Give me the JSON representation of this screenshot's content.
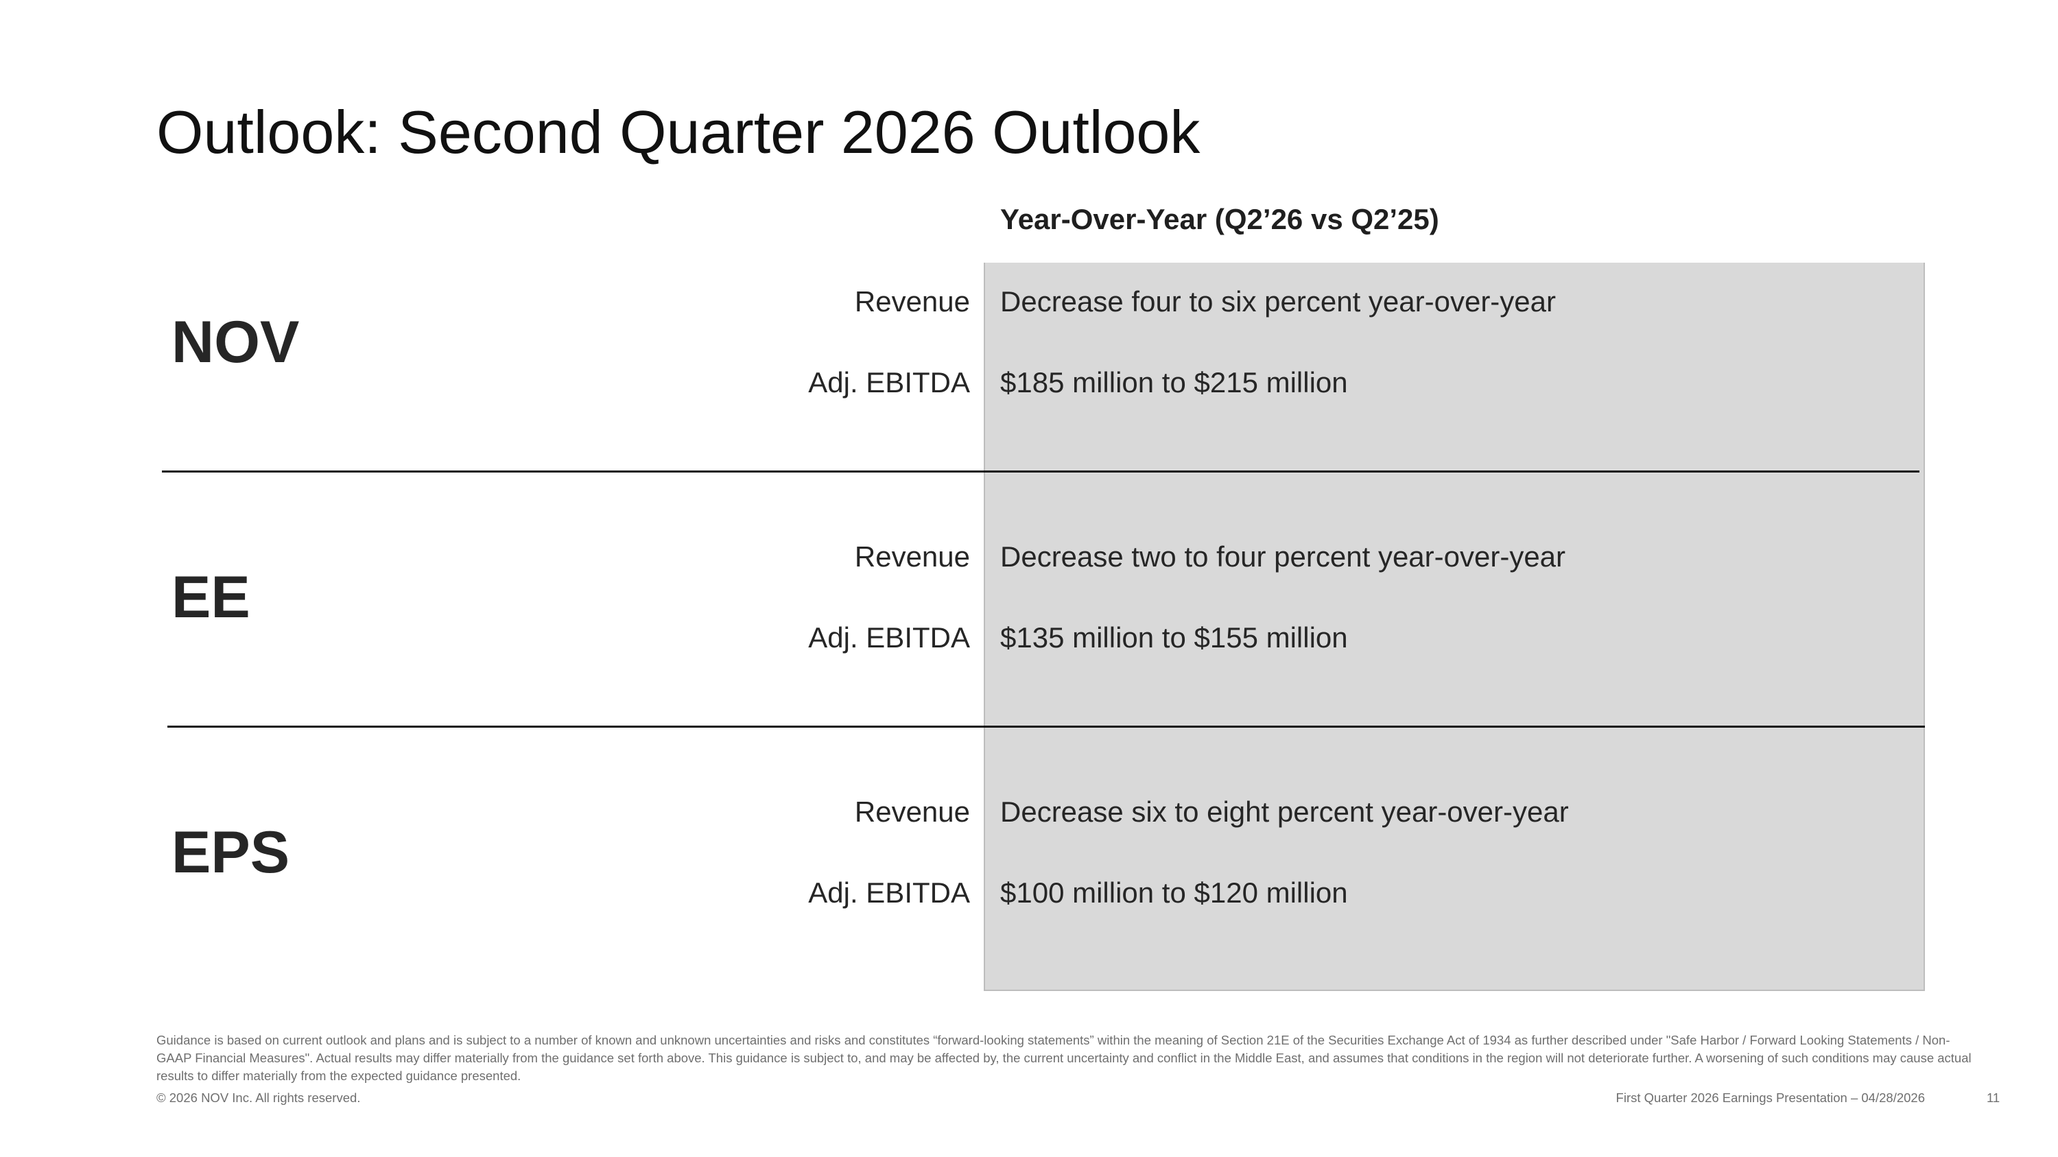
{
  "title": "Outlook: Second Quarter 2026 Outlook",
  "column_header": "Year-Over-Year (Q2’26 vs Q2’25)",
  "segments": [
    {
      "name": "NOV",
      "rows": [
        {
          "label": "Revenue",
          "value": "Decrease four to six percent year-over-year"
        },
        {
          "label": "Adj. EBITDA",
          "value": "$185 million to $215 million"
        }
      ]
    },
    {
      "name": "EE",
      "rows": [
        {
          "label": "Revenue",
          "value": "Decrease two to four percent year-over-year"
        },
        {
          "label": "Adj. EBITDA",
          "value": "$135 million to $155 million"
        }
      ]
    },
    {
      "name": "EPS",
      "rows": [
        {
          "label": "Revenue",
          "value": "Decrease six to eight percent year-over-year"
        },
        {
          "label": "Adj. EBITDA",
          "value": "$100 million to $120 million"
        }
      ]
    }
  ],
  "footer": {
    "disclaimer": "Guidance is based on current outlook and plans and is subject to a number of known and unknown uncertainties and risks and constitutes “forward-looking statements” within the meaning of Section 21E of the Securities Exchange Act of 1934 as further described under \"Safe Harbor / Forward Looking Statements / Non-GAAP Financial Measures\". Actual results may differ materially from the guidance set forth above. This guidance is subject to, and may be affected by, the current uncertainty and conflict in the Middle East, and assumes that conditions in the region will not deteriorate further. A worsening of such conditions may cause actual results to differ materially from the expected guidance presented.",
    "copyright": "© 2026 NOV Inc. All rights reserved.",
    "presentation": "First Quarter 2026 Earnings Presentation – 04/28/2026",
    "page_number": "11"
  }
}
